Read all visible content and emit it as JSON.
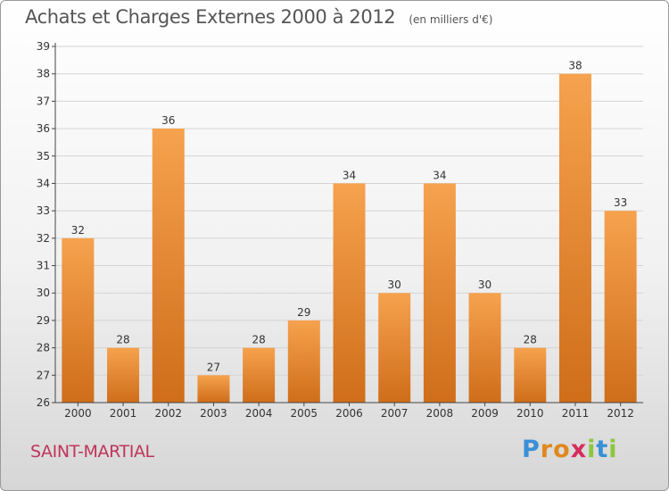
{
  "header": {
    "title": "Achats et Charges Externes 2000 à 2012",
    "unit": "(en milliers d'€)"
  },
  "footer": {
    "town": "SAINT-MARTIAL",
    "brand_letters": [
      {
        "ch": "P",
        "color": "#3a8fd6"
      },
      {
        "ch": "r",
        "color": "#e0881f"
      },
      {
        "ch": "o",
        "color": "#e0881f"
      },
      {
        "ch": "x",
        "color": "#d62c5b"
      },
      {
        "ch": "i",
        "color": "#8cc63f"
      },
      {
        "ch": "t",
        "color": "#3a8fd6"
      },
      {
        "ch": "i",
        "color": "#8cc63f"
      }
    ]
  },
  "colors": {
    "bar_top": "#f6a24e",
    "bar_bottom": "#cf6d1a",
    "grid": "#d4d4d4",
    "axis": "#444444",
    "label": "#333333"
  },
  "chart_data": {
    "type": "bar",
    "title": "Achats et Charges Externes 2000 à 2012",
    "categories": [
      "2000",
      "2001",
      "2002",
      "2003",
      "2004",
      "2005",
      "2006",
      "2007",
      "2008",
      "2009",
      "2010",
      "2011",
      "2012"
    ],
    "values": [
      32,
      28,
      36,
      27,
      28,
      29,
      34,
      30,
      34,
      30,
      28,
      38,
      33
    ],
    "ylim": [
      26,
      39
    ],
    "yticks": [
      26,
      27,
      28,
      29,
      30,
      31,
      32,
      33,
      34,
      35,
      36,
      37,
      38,
      39
    ],
    "grid": true,
    "data_labels": true
  }
}
